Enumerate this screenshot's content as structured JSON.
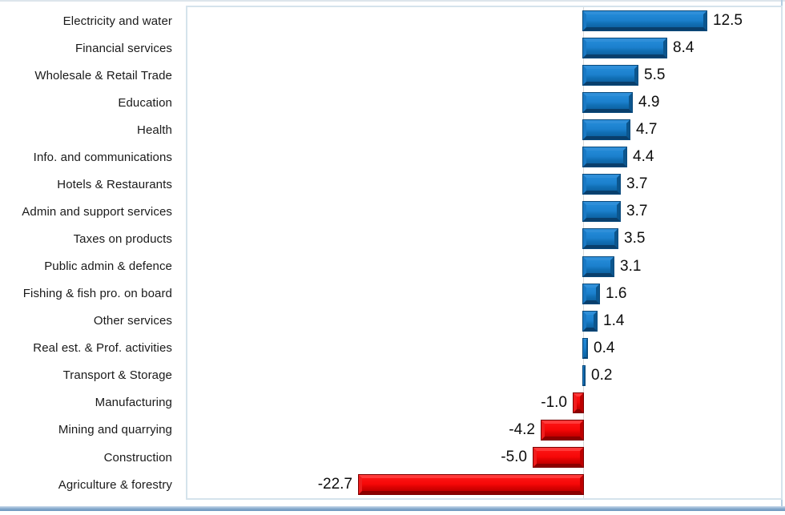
{
  "chart_data": {
    "type": "bar",
    "orientation": "horizontal",
    "title": "",
    "xlabel": "",
    "ylabel": "",
    "grid": false,
    "legend": false,
    "axis": {
      "min": -40,
      "max": 20,
      "zero_line_color": "#d9d9d9"
    },
    "categories": [
      "Electricity and water",
      "Financial services",
      "Wholesale & Retail Trade",
      "Education",
      "Health",
      "Info. and communications",
      "Hotels & Restaurants",
      "Admin and support services",
      "Taxes on products",
      "Public admin & defence",
      "Fishing & fish pro. on board",
      "Other services",
      "Real est. & Prof. activities",
      "Transport & Storage",
      "Manufacturing",
      "Mining and quarrying",
      "Construction",
      "Agriculture & forestry"
    ],
    "values": [
      12.5,
      8.4,
      5.5,
      4.9,
      4.7,
      4.4,
      3.7,
      3.7,
      3.5,
      3.1,
      1.6,
      1.4,
      0.4,
      0.2,
      -1.0,
      -4.2,
      -5.0,
      -22.7
    ],
    "value_labels": [
      "12.5",
      "8.4",
      "5.5",
      "4.9",
      "4.7",
      "4.4",
      "3.7",
      "3.7",
      "3.5",
      "3.1",
      "1.6",
      "1.4",
      "0.4",
      "0.2",
      "-1.0",
      "-4.2",
      "-5.0",
      "-22.7"
    ],
    "colors": {
      "positive_bar": "#1478c4",
      "negative_bar": "#f40b0b",
      "plot_border": "#d5e3ec",
      "frame_blue": "#7aa1c6",
      "label_text": "#1a1a1a",
      "value_text": "#0d0d0d"
    }
  }
}
